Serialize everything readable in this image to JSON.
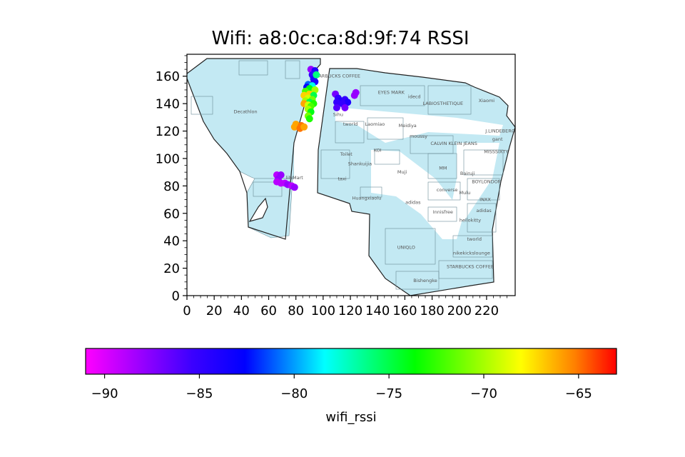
{
  "chart_data": {
    "type": "scatter",
    "title": "Wifi: a8:0c:ca:8d:9f:74 RSSI",
    "xlim": [
      0,
      241
    ],
    "ylim": [
      0,
      176
    ],
    "x_ticks": [
      0,
      20,
      40,
      60,
      80,
      100,
      120,
      140,
      160,
      180,
      200,
      220
    ],
    "y_ticks": [
      0,
      20,
      40,
      60,
      80,
      100,
      120,
      140,
      160
    ],
    "grid": false,
    "background": "indoor floor plan of a shopping mall",
    "floorplan_labels": [
      {
        "text": "Decathlon",
        "x": 43,
        "y": 133
      },
      {
        "text": "STARBUCKS COFFEE",
        "x": 110,
        "y": 159
      },
      {
        "text": "EYES MARK",
        "x": 150,
        "y": 147
      },
      {
        "text": "idecd",
        "x": 167,
        "y": 144
      },
      {
        "text": "LABIOSTHETIQUE",
        "x": 188,
        "y": 139
      },
      {
        "text": "Xiaomi",
        "x": 220,
        "y": 141
      },
      {
        "text": "Sihu",
        "x": 111,
        "y": 131
      },
      {
        "text": "tworld",
        "x": 120,
        "y": 124
      },
      {
        "text": "Laomiao",
        "x": 138,
        "y": 124
      },
      {
        "text": "Meidiya",
        "x": 162,
        "y": 123
      },
      {
        "text": "moussy",
        "x": 170,
        "y": 115
      },
      {
        "text": "J.LINDEBERG",
        "x": 230,
        "y": 119
      },
      {
        "text": "gant",
        "x": 228,
        "y": 113
      },
      {
        "text": "CALVIN KLEIN JEANS",
        "x": 196,
        "y": 110
      },
      {
        "text": "MISSSIXTY",
        "x": 227,
        "y": 104
      },
      {
        "text": "Toilet",
        "x": 117,
        "y": 102
      },
      {
        "text": "KOI",
        "x": 140,
        "y": 105
      },
      {
        "text": "Shankuijia",
        "x": 127,
        "y": 95
      },
      {
        "text": "MM",
        "x": 188,
        "y": 92
      },
      {
        "text": "Muji",
        "x": 158,
        "y": 89
      },
      {
        "text": "Bairuji",
        "x": 206,
        "y": 88
      },
      {
        "text": "BOYLONDON",
        "x": 220,
        "y": 82
      },
      {
        "text": "taxi",
        "x": 114,
        "y": 84
      },
      {
        "text": "converse",
        "x": 191,
        "y": 76
      },
      {
        "text": "Mulu",
        "x": 204,
        "y": 74
      },
      {
        "text": "Huangxiaolu",
        "x": 132,
        "y": 70
      },
      {
        "text": "INXX",
        "x": 219,
        "y": 69
      },
      {
        "text": "adidas",
        "x": 166,
        "y": 67
      },
      {
        "text": "adidas",
        "x": 218,
        "y": 61
      },
      {
        "text": "Innisfree",
        "x": 188,
        "y": 60
      },
      {
        "text": "hellokitty",
        "x": 208,
        "y": 54
      },
      {
        "text": "tworld",
        "x": 211,
        "y": 40
      },
      {
        "text": "UNIQLO",
        "x": 161,
        "y": 34
      },
      {
        "text": "nikekickslounge",
        "x": 209,
        "y": 30
      },
      {
        "text": "STARBUCKS COFFEE",
        "x": 208,
        "y": 20
      },
      {
        "text": "Bishengke",
        "x": 175,
        "y": 10
      },
      {
        "text": "lilyMart",
        "x": 79,
        "y": 85
      }
    ],
    "points": [
      {
        "x": 91,
        "y": 165,
        "rssi": -88
      },
      {
        "x": 94,
        "y": 164,
        "rssi": -84
      },
      {
        "x": 92,
        "y": 161,
        "rssi": -85
      },
      {
        "x": 93,
        "y": 158,
        "rssi": -84
      },
      {
        "x": 95,
        "y": 161,
        "rssi": -76
      },
      {
        "x": 94,
        "y": 156,
        "rssi": -84
      },
      {
        "x": 89,
        "y": 154,
        "rssi": -81
      },
      {
        "x": 92,
        "y": 153,
        "rssi": -78
      },
      {
        "x": 88,
        "y": 152,
        "rssi": -83
      },
      {
        "x": 90,
        "y": 151,
        "rssi": -74
      },
      {
        "x": 94,
        "y": 150,
        "rssi": -70
      },
      {
        "x": 87,
        "y": 149,
        "rssi": -72
      },
      {
        "x": 90,
        "y": 147,
        "rssi": -67
      },
      {
        "x": 93,
        "y": 146,
        "rssi": -75
      },
      {
        "x": 86,
        "y": 146,
        "rssi": -67
      },
      {
        "x": 89,
        "y": 144,
        "rssi": -69
      },
      {
        "x": 92,
        "y": 143,
        "rssi": -71
      },
      {
        "x": 87,
        "y": 142,
        "rssi": -70
      },
      {
        "x": 90,
        "y": 141,
        "rssi": -75
      },
      {
        "x": 93,
        "y": 140,
        "rssi": -73
      },
      {
        "x": 86,
        "y": 140,
        "rssi": -66
      },
      {
        "x": 89,
        "y": 139,
        "rssi": -69
      },
      {
        "x": 91,
        "y": 138,
        "rssi": -72
      },
      {
        "x": 89,
        "y": 136,
        "rssi": -70
      },
      {
        "x": 91,
        "y": 134,
        "rssi": -74
      },
      {
        "x": 89,
        "y": 131,
        "rssi": -71
      },
      {
        "x": 90,
        "y": 129,
        "rssi": -73
      },
      {
        "x": 80,
        "y": 125,
        "rssi": -66
      },
      {
        "x": 84,
        "y": 124,
        "rssi": -65
      },
      {
        "x": 79,
        "y": 123,
        "rssi": -66
      },
      {
        "x": 83,
        "y": 122,
        "rssi": -65
      },
      {
        "x": 86,
        "y": 123,
        "rssi": -66
      },
      {
        "x": 109,
        "y": 147,
        "rssi": -87
      },
      {
        "x": 111,
        "y": 144,
        "rssi": -85
      },
      {
        "x": 113,
        "y": 142,
        "rssi": -84
      },
      {
        "x": 116,
        "y": 143,
        "rssi": -85
      },
      {
        "x": 118,
        "y": 141,
        "rssi": -84
      },
      {
        "x": 110,
        "y": 141,
        "rssi": -85
      },
      {
        "x": 114,
        "y": 140,
        "rssi": -85
      },
      {
        "x": 110,
        "y": 137,
        "rssi": -86
      },
      {
        "x": 116,
        "y": 137,
        "rssi": -87
      },
      {
        "x": 124,
        "y": 148,
        "rssi": -88
      },
      {
        "x": 123,
        "y": 146,
        "rssi": -88
      },
      {
        "x": 66,
        "y": 88,
        "rssi": -89
      },
      {
        "x": 69,
        "y": 88,
        "rssi": -88
      },
      {
        "x": 67,
        "y": 85,
        "rssi": -88
      },
      {
        "x": 66,
        "y": 83,
        "rssi": -89
      },
      {
        "x": 69,
        "y": 82,
        "rssi": -89
      },
      {
        "x": 72,
        "y": 82,
        "rssi": -89
      },
      {
        "x": 74,
        "y": 81,
        "rssi": -88
      },
      {
        "x": 77,
        "y": 80,
        "rssi": -89
      },
      {
        "x": 79,
        "y": 79,
        "rssi": -88
      }
    ],
    "colorbar": {
      "label": "wifi_rssi",
      "colormap": "gist_rainbow_r",
      "range": [
        -91,
        -63
      ],
      "ticks": [
        -90,
        -85,
        -80,
        -75,
        -70,
        -65
      ]
    }
  }
}
